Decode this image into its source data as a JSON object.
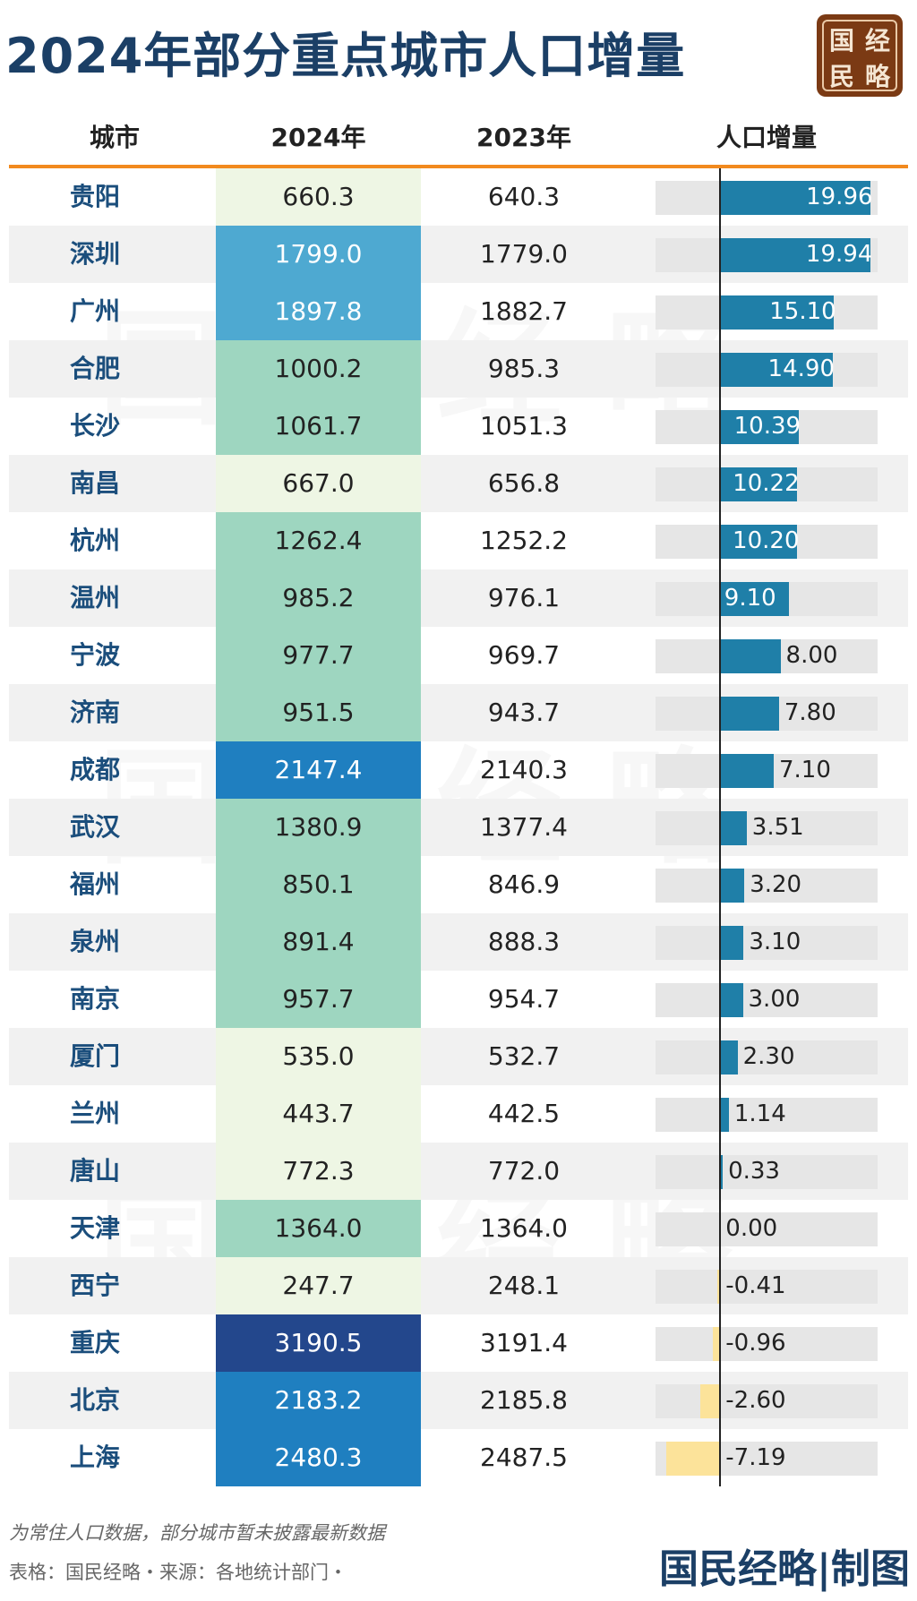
{
  "title": "2024年部分重点城市人口增量",
  "logo": [
    "经",
    "国",
    "略",
    "民"
  ],
  "chart_data": {
    "type": "table",
    "columns": [
      "城市",
      "2024年",
      "2023年",
      "人口增量"
    ],
    "rows": [
      {
        "city": "贵阳",
        "y2024": "660.3",
        "y2023": "640.3",
        "increase": 19.96
      },
      {
        "city": "深圳",
        "y2024": "1799.0",
        "y2023": "1779.0",
        "increase": 19.94
      },
      {
        "city": "广州",
        "y2024": "1897.8",
        "y2023": "1882.7",
        "increase": 15.1
      },
      {
        "city": "合肥",
        "y2024": "1000.2",
        "y2023": "985.3",
        "increase": 14.9
      },
      {
        "city": "长沙",
        "y2024": "1061.7",
        "y2023": "1051.3",
        "increase": 10.39
      },
      {
        "city": "南昌",
        "y2024": "667.0",
        "y2023": "656.8",
        "increase": 10.22
      },
      {
        "city": "杭州",
        "y2024": "1262.4",
        "y2023": "1252.2",
        "increase": 10.2
      },
      {
        "city": "温州",
        "y2024": "985.2",
        "y2023": "976.1",
        "increase": 9.1
      },
      {
        "city": "宁波",
        "y2024": "977.7",
        "y2023": "969.7",
        "increase": 8.0
      },
      {
        "city": "济南",
        "y2024": "951.5",
        "y2023": "943.7",
        "increase": 7.8
      },
      {
        "city": "成都",
        "y2024": "2147.4",
        "y2023": "2140.3",
        "increase": 7.1
      },
      {
        "city": "武汉",
        "y2024": "1380.9",
        "y2023": "1377.4",
        "increase": 3.51
      },
      {
        "city": "福州",
        "y2024": "850.1",
        "y2023": "846.9",
        "increase": 3.2
      },
      {
        "city": "泉州",
        "y2024": "891.4",
        "y2023": "888.3",
        "increase": 3.1
      },
      {
        "city": "南京",
        "y2024": "957.7",
        "y2023": "954.7",
        "increase": 3.0
      },
      {
        "city": "厦门",
        "y2024": "535.0",
        "y2023": "532.7",
        "increase": 2.3
      },
      {
        "city": "兰州",
        "y2024": "443.7",
        "y2023": "442.5",
        "increase": 1.14
      },
      {
        "city": "唐山",
        "y2024": "772.3",
        "y2023": "772.0",
        "increase": 0.33
      },
      {
        "city": "天津",
        "y2024": "1364.0",
        "y2023": "1364.0",
        "increase": 0.0
      },
      {
        "city": "西宁",
        "y2024": "247.7",
        "y2023": "248.1",
        "increase": -0.41
      },
      {
        "city": "重庆",
        "y2024": "3190.5",
        "y2023": "3191.4",
        "increase": -0.96
      },
      {
        "city": "北京",
        "y2024": "2183.2",
        "y2023": "2185.8",
        "increase": -2.6
      },
      {
        "city": "上海",
        "y2024": "2480.3",
        "y2023": "2487.5",
        "increase": -7.19
      }
    ],
    "increase_range": [
      -8.6,
      20.9
    ],
    "colors": {
      "positive_bar": "#1f7fa8",
      "negative_bar": "#fce39a",
      "header_rule": "#f28a1e",
      "heat_scale": [
        "#eef6e4",
        "#9ed6c0",
        "#4ea9d1",
        "#1f7fc0",
        "#23478c"
      ]
    }
  },
  "footer": {
    "note": "为常住人口数据，部分城市暂未披露最新数据",
    "source": "表格：国民经略・来源：各地统计部门・",
    "brand": "国民经略|制图"
  }
}
